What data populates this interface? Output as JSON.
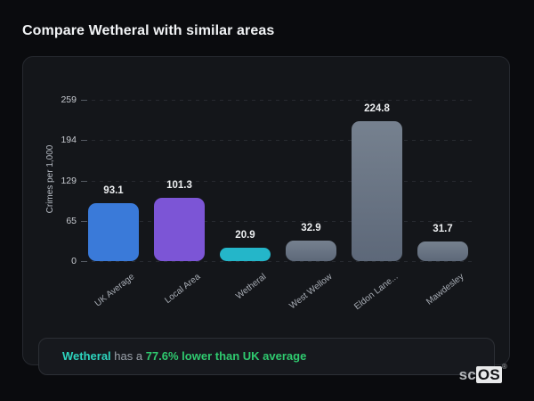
{
  "page": {
    "title": "Compare Wetheral with similar areas"
  },
  "chart_data": {
    "type": "bar",
    "title": "Compare Wetheral with similar areas",
    "ylabel": "Crimes per 1,000",
    "xlabel": "",
    "categories": [
      "UK Average",
      "Local Area",
      "Wetheral",
      "West Wellow",
      "Eldon Lane...",
      "Mawdesley"
    ],
    "values": [
      93.1,
      101.3,
      20.9,
      32.9,
      224.8,
      31.7
    ],
    "value_labels": [
      "93.1",
      "101.3",
      "20.9",
      "32.9",
      "224.8",
      "31.7"
    ],
    "bar_colors": [
      "#3a7ad9",
      "#7c55d6",
      "#24b6c9",
      "#5d6879",
      "#5d6879",
      "#5d6879"
    ],
    "bar_colors_top": [
      "#3a7ad9",
      "#7c55d6",
      "#24b6c9",
      "#76818f",
      "#76818f",
      "#76818f"
    ],
    "yticks": [
      0,
      65,
      129,
      194,
      259
    ],
    "ylim": [
      0,
      259
    ],
    "grid": "horizontal dashed",
    "legend": "none"
  },
  "note": {
    "area": "Wetheral",
    "middle": " has a ",
    "highlight": "77.6% lower than UK average",
    "area_color": "#2dd4be",
    "highlight_color": "#2fca6f"
  },
  "logo": {
    "prefix": "sc",
    "boxed": "OS",
    "registered": "®"
  },
  "colors": {
    "background": "#0a0b0e",
    "card_background": "#14161a",
    "card_border": "#26292f",
    "accent_blue": "#3a7ad9",
    "accent_purple": "#7c55d6",
    "accent_teal": "#24b6c9",
    "neutral_bar": "#5d6879",
    "note_green": "#2fca6f"
  }
}
